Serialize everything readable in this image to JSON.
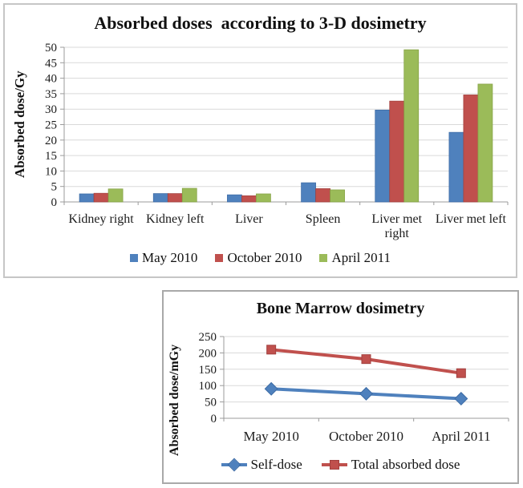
{
  "colors": {
    "series_blue": "#4f81bd",
    "series_blue_edge": "#3c6ba5",
    "series_red": "#c0504d",
    "series_red_edge": "#a2403e",
    "series_green": "#9bbb59",
    "series_green_edge": "#84a144",
    "gridline": "#d9d9d9",
    "axis": "#9b9b9b",
    "text": "#1c1c1c"
  },
  "chart_data": [
    {
      "type": "bar",
      "title": "Absorbed doses  according to 3-D dosimetry",
      "ylabel": "Absorbed dose/Gy",
      "xlabel": "",
      "ylim": [
        0,
        50
      ],
      "y_ticks": [
        0,
        5,
        10,
        15,
        20,
        25,
        30,
        35,
        40,
        45,
        50
      ],
      "grid": true,
      "legend_position": "bottom",
      "categories": [
        "Kidney right",
        "Kidney left",
        "Liver",
        "Spleen",
        "Liver met right",
        "Liver met left"
      ],
      "category_label_lines": [
        [
          "Kidney right"
        ],
        [
          "Kidney left"
        ],
        [
          "Liver"
        ],
        [
          "Spleen"
        ],
        [
          "Liver met",
          "right"
        ],
        [
          "Liver met left"
        ]
      ],
      "series": [
        {
          "name": "May 2010",
          "color": "#4f81bd",
          "edge": "#3c6ba5",
          "values": [
            2.6,
            2.7,
            2.3,
            6.2,
            29.7,
            22.5
          ]
        },
        {
          "name": "October 2010",
          "color": "#c0504d",
          "edge": "#a2403e",
          "values": [
            2.8,
            2.7,
            2.0,
            4.3,
            32.6,
            34.6
          ]
        },
        {
          "name": "April 2011",
          "color": "#9bbb59",
          "edge": "#84a144",
          "values": [
            4.2,
            4.4,
            2.6,
            3.9,
            49.2,
            38.1
          ]
        }
      ]
    },
    {
      "type": "line",
      "title": "Bone Marrow dosimetry",
      "ylabel": "Absorbed dose/mGy",
      "xlabel": "",
      "ylim": [
        0,
        250
      ],
      "y_ticks": [
        0,
        50,
        100,
        150,
        200,
        250
      ],
      "grid": true,
      "legend_position": "bottom",
      "categories": [
        "May 2010",
        "October 2010",
        "April 2011"
      ],
      "series": [
        {
          "name": "Self-dose",
          "color": "#4f81bd",
          "edge": "#3c6ba5",
          "marker": "diamond",
          "values": [
            90,
            75,
            60
          ]
        },
        {
          "name": "Total absorbed dose",
          "color": "#c0504d",
          "edge": "#a2403e",
          "marker": "square",
          "values": [
            210,
            181,
            138
          ]
        }
      ]
    }
  ]
}
